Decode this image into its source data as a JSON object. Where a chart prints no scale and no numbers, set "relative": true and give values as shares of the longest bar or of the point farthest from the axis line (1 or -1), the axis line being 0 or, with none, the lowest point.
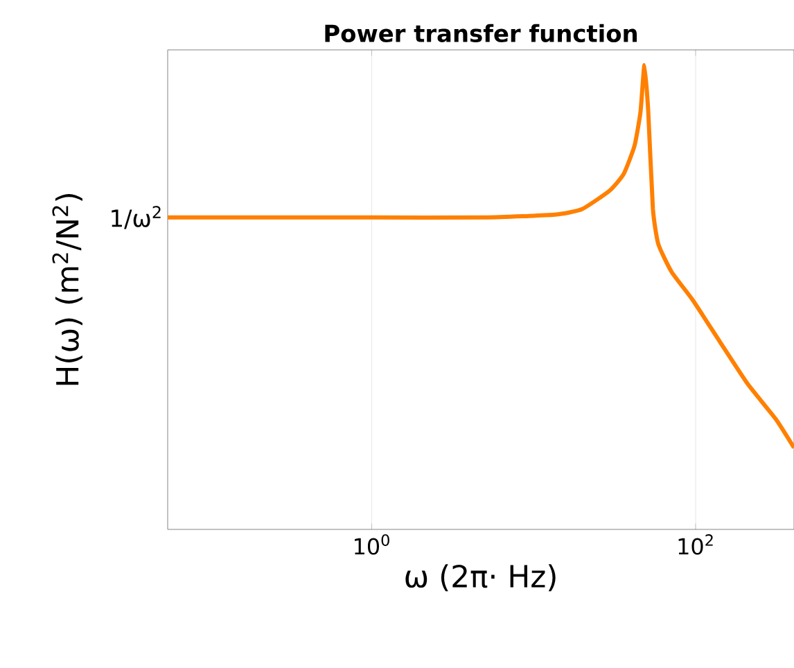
{
  "chart_data": {
    "type": "line",
    "title": "Power transfer function",
    "xlabel": "ω (2π· Hz)",
    "ylabel": "H(ω) (m$^{2}$/N$^{2}$)",
    "relative": true,
    "log": "x",
    "grid": "x",
    "xlim": [
      0.055,
      405
    ],
    "xticks": [
      {
        "value": 1,
        "label": "10$^{0}$"
      },
      {
        "value": 100,
        "label": "10$^{2}$"
      }
    ],
    "annotations": [
      {
        "text": "1/ω$^{2}$",
        "x": 0.055,
        "y": 0.672
      }
    ],
    "x": [
      0.055,
      1,
      5,
      13.5,
      19.9,
      29.5,
      36,
      42,
      45.7,
      48.3,
      51,
      54.5,
      58.8,
      71,
      96,
      142,
      210,
      312,
      405
    ],
    "series": [
      {
        "color": "#ff8000",
        "values": [
          0.672,
          0.672,
          0.672,
          0.678,
          0.69,
          0.73,
          0.766,
          0.827,
          0.9,
          1.0,
          0.9,
          0.69,
          0.615,
          0.555,
          0.494,
          0.403,
          0.313,
          0.238,
          0.176
        ]
      }
    ]
  }
}
